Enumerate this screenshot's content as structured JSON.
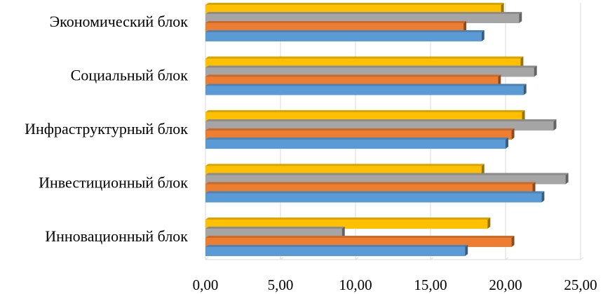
{
  "chart_data": {
    "type": "bar",
    "orientation": "horizontal",
    "style": "3d",
    "categories": [
      "Экономический  блок",
      "Социальный  блок",
      "Инфраструктурный  блок",
      "Инвестиционный  блок",
      "Инновационный блок"
    ],
    "series": [
      {
        "color": "#ffc000",
        "values": [
          19.7,
          21.0,
          21.1,
          18.4,
          18.8
        ]
      },
      {
        "color": "#a5a5a5",
        "values": [
          20.9,
          21.9,
          23.2,
          24.0,
          9.1
        ]
      },
      {
        "color": "#ed7d31",
        "values": [
          17.2,
          19.5,
          20.4,
          21.8,
          20.4
        ]
      },
      {
        "color": "#5b9bd5",
        "values": [
          18.4,
          21.2,
          20.0,
          22.4,
          17.3
        ]
      }
    ],
    "xlim": [
      0,
      25
    ],
    "xticks": [
      "0,00",
      "5,00",
      "10,00",
      "15,00",
      "20,00",
      "25,00"
    ],
    "grid": true,
    "legend": "none"
  }
}
